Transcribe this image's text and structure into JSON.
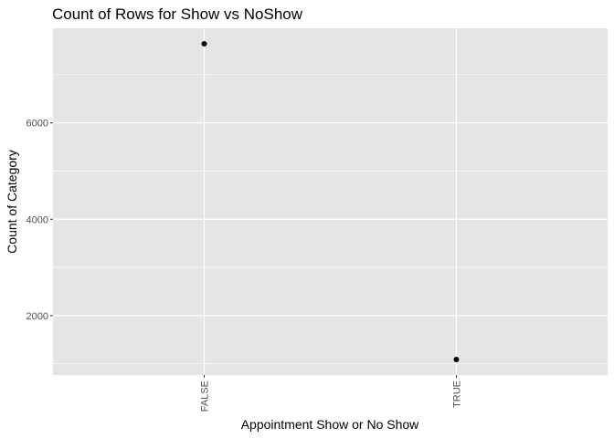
{
  "chart_data": {
    "type": "scatter",
    "title": "Count of Rows for Show vs NoShow",
    "xlabel": "Appointment Show or No Show",
    "ylabel": "Count of Category",
    "categories": [
      "FALSE",
      "TRUE"
    ],
    "values": [
      7640,
      1090
    ],
    "y_ticks": [
      2000,
      4000,
      6000
    ],
    "ylim": [
      767,
      7963
    ],
    "grid": true,
    "legend": "none",
    "colors": {
      "panel": "#e5e5e5",
      "grid": "#ffffff",
      "point": "#000000",
      "text": "#000000",
      "tick_text": "#4d4d4d"
    }
  }
}
